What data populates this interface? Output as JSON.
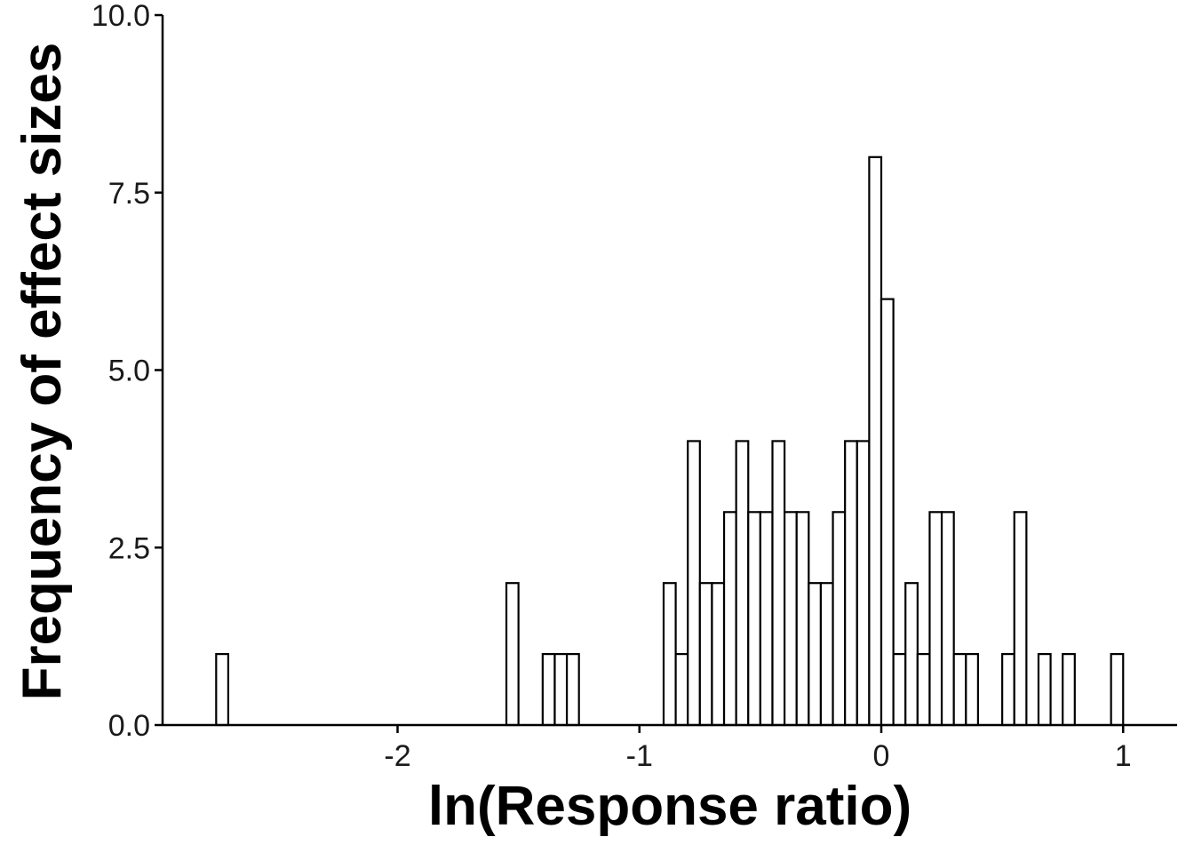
{
  "chart_data": {
    "type": "bar",
    "xlabel": "ln(Response ratio)",
    "ylabel": "Frequency of effect sizes",
    "xlim": [
      -2.9,
      1.2
    ],
    "ylim": [
      0,
      10
    ],
    "x_ticks": [
      -2,
      -1,
      0,
      1
    ],
    "x_tick_labels": [
      "-2",
      "-1",
      "0",
      "1"
    ],
    "y_ticks": [
      0,
      2.5,
      5,
      7.5,
      10
    ],
    "y_tick_labels": [
      "0.0",
      "2.5",
      "5.0",
      "7.5",
      "10.0"
    ],
    "bin_width": 0.05,
    "grid": false,
    "bars": [
      {
        "x": -2.725,
        "count": 1
      },
      {
        "x": -1.525,
        "count": 2
      },
      {
        "x": -1.375,
        "count": 1
      },
      {
        "x": -1.325,
        "count": 1
      },
      {
        "x": -1.275,
        "count": 1
      },
      {
        "x": -0.875,
        "count": 2
      },
      {
        "x": -0.825,
        "count": 1
      },
      {
        "x": -0.775,
        "count": 4
      },
      {
        "x": -0.725,
        "count": 2
      },
      {
        "x": -0.675,
        "count": 2
      },
      {
        "x": -0.625,
        "count": 3
      },
      {
        "x": -0.575,
        "count": 4
      },
      {
        "x": -0.525,
        "count": 3
      },
      {
        "x": -0.475,
        "count": 3
      },
      {
        "x": -0.425,
        "count": 4
      },
      {
        "x": -0.375,
        "count": 3
      },
      {
        "x": -0.325,
        "count": 3
      },
      {
        "x": -0.275,
        "count": 2
      },
      {
        "x": -0.225,
        "count": 2
      },
      {
        "x": -0.175,
        "count": 3
      },
      {
        "x": -0.125,
        "count": 4
      },
      {
        "x": -0.075,
        "count": 4
      },
      {
        "x": -0.025,
        "count": 8
      },
      {
        "x": 0.025,
        "count": 6
      },
      {
        "x": 0.075,
        "count": 1
      },
      {
        "x": 0.125,
        "count": 2
      },
      {
        "x": 0.175,
        "count": 1
      },
      {
        "x": 0.225,
        "count": 3
      },
      {
        "x": 0.275,
        "count": 3
      },
      {
        "x": 0.325,
        "count": 1
      },
      {
        "x": 0.375,
        "count": 1
      },
      {
        "x": 0.525,
        "count": 1
      },
      {
        "x": 0.575,
        "count": 3
      },
      {
        "x": 0.675,
        "count": 1
      },
      {
        "x": 0.775,
        "count": 1
      },
      {
        "x": 0.975,
        "count": 1
      }
    ]
  }
}
